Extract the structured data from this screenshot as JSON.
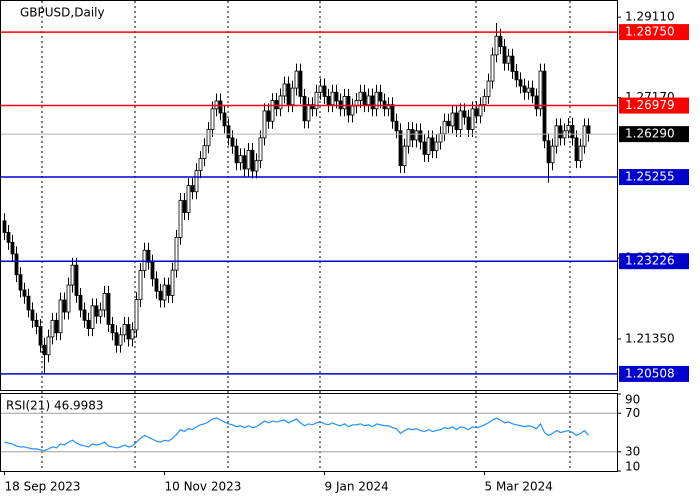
{
  "chart_data": {
    "type": "candlestick",
    "title": "GBPUSD,Daily",
    "categories": [
      "18 Sep 2023",
      null,
      null,
      null,
      null,
      null,
      null,
      null,
      null,
      null,
      null,
      null,
      null,
      null,
      null,
      null,
      null,
      null,
      null,
      null,
      null,
      null,
      null,
      null,
      null,
      null,
      null,
      null,
      null,
      null,
      null,
      null,
      null,
      null,
      null,
      null,
      null,
      null,
      null,
      null,
      "10 Nov 2023",
      null,
      null,
      null,
      null,
      null,
      null,
      null,
      null,
      null,
      null,
      null,
      null,
      null,
      null,
      null,
      null,
      null,
      null,
      null,
      null,
      null,
      null,
      null,
      null,
      null,
      null,
      null,
      null,
      null,
      null,
      null,
      null,
      null,
      null,
      null,
      null,
      null,
      null,
      null,
      "9 Jan 2024",
      null,
      null,
      null,
      null,
      null,
      null,
      null,
      null,
      null,
      null,
      null,
      null,
      null,
      null,
      null,
      null,
      null,
      null,
      null,
      null,
      null,
      null,
      null,
      null,
      null,
      null,
      null,
      null,
      null,
      null,
      null,
      null,
      null,
      null,
      null,
      null,
      null,
      null,
      null,
      "5 Mar 2024",
      null,
      null,
      null,
      null,
      null,
      null,
      null,
      null,
      null,
      null,
      null,
      null,
      null,
      null,
      null,
      null,
      null,
      null,
      null,
      null,
      null,
      null,
      null,
      null,
      null,
      null
    ],
    "open": [
      1.242,
      1.2392,
      1.2368,
      1.234,
      1.229,
      1.2253,
      1.2238,
      1.2205,
      1.218,
      1.2165,
      1.212,
      1.2097,
      1.214,
      1.218,
      1.215,
      1.2229,
      1.22,
      1.2265,
      1.2313,
      1.224,
      1.2205,
      1.218,
      1.216,
      1.2215,
      1.219,
      1.2205,
      1.2245,
      1.217,
      1.215,
      1.212,
      1.2145,
      1.217,
      1.2135,
      1.2157,
      1.223,
      1.23,
      1.2349,
      1.232,
      1.228,
      1.225,
      1.2229,
      1.2265,
      1.224,
      1.2301,
      1.238,
      1.2469,
      1.244,
      1.2505,
      1.249,
      1.2541,
      1.257,
      1.2601,
      1.264,
      1.269,
      1.2709,
      1.268,
      1.2649,
      1.262,
      1.26,
      1.256,
      1.2577,
      1.2545,
      1.259,
      1.254,
      1.2565,
      1.262,
      1.2685,
      1.266,
      1.271,
      1.269,
      1.2721,
      1.275,
      1.27,
      1.274,
      1.2781,
      1.272,
      1.2661,
      1.27,
      1.269,
      1.273,
      1.2745,
      1.272,
      1.27,
      1.273,
      1.2709,
      1.269,
      1.272,
      1.2675,
      1.2697,
      1.271,
      1.273,
      1.27,
      1.2721,
      1.269,
      1.273,
      1.2709,
      1.269,
      1.27,
      1.266,
      1.2637,
      1.2553,
      1.26,
      1.264,
      1.2615,
      1.2637,
      1.261,
      1.258,
      1.262,
      1.2589,
      1.261,
      1.263,
      1.266,
      1.2649,
      1.268,
      1.264,
      1.2685,
      1.267,
      1.264,
      1.269,
      1.2673,
      1.27,
      1.272,
      1.2757,
      1.282,
      1.2865,
      1.284,
      1.28,
      1.2817,
      1.278,
      1.276,
      1.2745,
      1.273,
      1.274,
      1.2721,
      1.269,
      1.2781,
      1.2613,
      1.256,
      1.26,
      1.2649,
      1.262,
      1.2637,
      1.265,
      1.262,
      1.2565,
      1.26,
      1.2649
    ],
    "high": [
      1.2438,
      1.241,
      1.2386,
      1.2358,
      1.2308,
      1.2271,
      1.2256,
      1.2223,
      1.2198,
      1.2183,
      1.2138,
      1.2158,
      1.2198,
      1.2198,
      1.2247,
      1.2247,
      1.2283,
      1.2331,
      1.2331,
      1.2258,
      1.2223,
      1.2198,
      1.2233,
      1.2233,
      1.2223,
      1.2263,
      1.2263,
      1.2188,
      1.2168,
      1.2163,
      1.2188,
      1.2188,
      1.2175,
      1.2248,
      1.2318,
      1.2367,
      1.2367,
      1.2338,
      1.2298,
      1.2268,
      1.2283,
      1.2283,
      1.2319,
      1.2398,
      1.2487,
      1.2487,
      1.2523,
      1.2523,
      1.2559,
      1.2588,
      1.2619,
      1.2658,
      1.2708,
      1.2727,
      1.2727,
      1.2698,
      1.2667,
      1.2638,
      1.2618,
      1.2595,
      1.2595,
      1.2608,
      1.2608,
      1.2583,
      1.2638,
      1.2703,
      1.2703,
      1.2728,
      1.2728,
      1.2739,
      1.2768,
      1.2768,
      1.2758,
      1.2799,
      1.2799,
      1.2738,
      1.2718,
      1.2718,
      1.2748,
      1.2763,
      1.2763,
      1.2738,
      1.2748,
      1.2748,
      1.2727,
      1.2738,
      1.2738,
      1.2715,
      1.2728,
      1.2748,
      1.2748,
      1.2739,
      1.2739,
      1.2748,
      1.2748,
      1.2727,
      1.2718,
      1.2718,
      1.2678,
      1.2655,
      1.2618,
      1.2658,
      1.2658,
      1.2655,
      1.2655,
      1.2628,
      1.2638,
      1.2638,
      1.2628,
      1.2648,
      1.2678,
      1.2678,
      1.2698,
      1.2698,
      1.2703,
      1.2703,
      1.2688,
      1.2708,
      1.2708,
      1.2718,
      1.2738,
      1.2775,
      1.2838,
      1.2897,
      1.2883,
      1.2858,
      1.2835,
      1.2835,
      1.2798,
      1.2778,
      1.2763,
      1.2758,
      1.2758,
      1.2739,
      1.2799,
      1.2799,
      1.2631,
      1.2618,
      1.2667,
      1.2667,
      1.2655,
      1.2668,
      1.2668,
      1.2638,
      1.2618,
      1.2667,
      1.2667
    ],
    "low": [
      1.2374,
      1.235,
      1.2322,
      1.2272,
      1.2235,
      1.222,
      1.2187,
      1.2162,
      1.2147,
      1.2102,
      1.2049,
      1.2079,
      1.2122,
      1.2132,
      1.2132,
      1.2182,
      1.2182,
      1.2247,
      1.2222,
      1.2187,
      1.2162,
      1.2142,
      1.2142,
      1.2172,
      1.2172,
      1.2187,
      1.2152,
      1.2132,
      1.2102,
      1.2102,
      1.2127,
      1.2117,
      1.2117,
      1.2139,
      1.2212,
      1.2282,
      1.2302,
      1.2262,
      1.2232,
      1.2211,
      1.2211,
      1.2222,
      1.2222,
      1.2283,
      1.2362,
      1.2422,
      1.2422,
      1.2472,
      1.2472,
      1.2523,
      1.2552,
      1.2583,
      1.2622,
      1.2672,
      1.2662,
      1.2631,
      1.2602,
      1.2582,
      1.2542,
      1.2542,
      1.2527,
      1.2527,
      1.2522,
      1.2522,
      1.2547,
      1.2602,
      1.2642,
      1.2642,
      1.2672,
      1.2672,
      1.2703,
      1.2682,
      1.2682,
      1.2722,
      1.2702,
      1.2643,
      1.2643,
      1.2672,
      1.2672,
      1.2712,
      1.2702,
      1.2682,
      1.2682,
      1.2691,
      1.2672,
      1.2672,
      1.2657,
      1.2657,
      1.2679,
      1.2692,
      1.2682,
      1.2682,
      1.2672,
      1.2672,
      1.2691,
      1.2672,
      1.2672,
      1.2642,
      1.2619,
      1.2535,
      1.2535,
      1.2582,
      1.2597,
      1.2597,
      1.2592,
      1.2562,
      1.2562,
      1.2571,
      1.2571,
      1.2592,
      1.2612,
      1.2631,
      1.2631,
      1.2622,
      1.2622,
      1.2652,
      1.2622,
      1.2622,
      1.2655,
      1.2655,
      1.2682,
      1.2702,
      1.2739,
      1.2802,
      1.2822,
      1.2782,
      1.2782,
      1.2762,
      1.2742,
      1.2727,
      1.2712,
      1.2712,
      1.2703,
      1.2672,
      1.2672,
      1.2595,
      1.2512,
      1.2542,
      1.2582,
      1.2602,
      1.2602,
      1.2619,
      1.2602,
      1.2547,
      1.2547,
      1.2582,
      1.2611
    ],
    "close": [
      1.2392,
      1.2368,
      1.234,
      1.229,
      1.2253,
      1.2238,
      1.2205,
      1.218,
      1.2165,
      1.212,
      1.2097,
      1.214,
      1.218,
      1.215,
      1.2229,
      1.22,
      1.2265,
      1.2313,
      1.224,
      1.2205,
      1.218,
      1.216,
      1.2215,
      1.219,
      1.2205,
      1.2245,
      1.217,
      1.215,
      1.212,
      1.2145,
      1.217,
      1.2135,
      1.2157,
      1.223,
      1.23,
      1.2349,
      1.232,
      1.228,
      1.225,
      1.2229,
      1.2265,
      1.224,
      1.2301,
      1.238,
      1.2469,
      1.244,
      1.2505,
      1.249,
      1.2541,
      1.257,
      1.2601,
      1.264,
      1.269,
      1.2709,
      1.268,
      1.2649,
      1.262,
      1.26,
      1.256,
      1.2577,
      1.2545,
      1.259,
      1.254,
      1.2565,
      1.262,
      1.2685,
      1.266,
      1.271,
      1.269,
      1.2721,
      1.275,
      1.27,
      1.274,
      1.2781,
      1.272,
      1.2661,
      1.27,
      1.269,
      1.273,
      1.2745,
      1.272,
      1.27,
      1.273,
      1.2709,
      1.269,
      1.272,
      1.2675,
      1.2697,
      1.271,
      1.273,
      1.27,
      1.2721,
      1.269,
      1.273,
      1.2709,
      1.269,
      1.27,
      1.266,
      1.2637,
      1.2553,
      1.26,
      1.264,
      1.2615,
      1.2637,
      1.261,
      1.258,
      1.262,
      1.2589,
      1.261,
      1.263,
      1.266,
      1.2649,
      1.268,
      1.264,
      1.2685,
      1.267,
      1.264,
      1.269,
      1.2673,
      1.27,
      1.272,
      1.2757,
      1.282,
      1.2865,
      1.284,
      1.28,
      1.2817,
      1.278,
      1.276,
      1.2745,
      1.273,
      1.274,
      1.2721,
      1.269,
      1.2781,
      1.2613,
      1.256,
      1.26,
      1.2649,
      1.262,
      1.2637,
      1.265,
      1.262,
      1.2565,
      1.26,
      1.2649,
      1.2629
    ],
    "up_color": "#ffffff",
    "down_color": "#000000",
    "ylim": [
      1.2012,
      1.295
    ],
    "yticks": [
      {
        "value": 1.2911,
        "label": "1.29110"
      },
      {
        "value": 1.2717,
        "label": "1.27170"
      },
      {
        "value": 1.233,
        "label": "1.23300"
      },
      {
        "value": 1.2135,
        "label": "1.21350"
      }
    ],
    "levels": [
      {
        "value": 1.2875,
        "label": "1.28750",
        "color": "#ff0000"
      },
      {
        "value": 1.26979,
        "label": "1.26979",
        "color": "#ff0000"
      },
      {
        "value": 1.25255,
        "label": "1.25255",
        "color": "#0000cd"
      },
      {
        "value": 1.23226,
        "label": "1.23226",
        "color": "#0000cd"
      },
      {
        "value": 1.20508,
        "label": "1.20508",
        "color": "#0000cd"
      }
    ],
    "last_price": {
      "value": 1.2629,
      "label": "1.26290",
      "color": "#000000"
    },
    "indicator": {
      "type": "line",
      "title": "RSI(21) 46.9983",
      "color": "#1e90ff",
      "values": [
        40,
        39,
        38,
        36,
        35,
        35,
        34,
        33,
        33,
        32,
        31,
        33,
        35,
        34,
        38,
        37,
        40,
        42,
        39,
        37,
        36,
        35,
        38,
        37,
        38,
        40,
        36,
        35,
        34,
        35,
        37,
        35,
        36,
        40,
        44,
        47,
        45,
        43,
        41,
        40,
        42,
        41,
        44,
        48,
        53,
        51,
        54,
        53,
        56,
        58,
        59,
        61,
        64,
        65,
        63,
        61,
        59,
        58,
        56,
        57,
        55,
        57,
        55,
        56,
        59,
        62,
        60,
        62,
        61,
        62,
        63,
        60,
        62,
        64,
        60,
        57,
        59,
        58,
        60,
        61,
        59,
        58,
        60,
        58,
        57,
        59,
        56,
        58,
        58,
        59,
        57,
        58,
        56,
        59,
        58,
        57,
        57,
        55,
        54,
        49,
        52,
        54,
        53,
        54,
        52,
        51,
        53,
        51,
        52,
        53,
        55,
        54,
        56,
        53,
        56,
        55,
        53,
        56,
        55,
        56,
        58,
        60,
        63,
        65,
        63,
        60,
        61,
        59,
        58,
        57,
        56,
        57,
        56,
        54,
        59,
        50,
        47,
        49,
        52,
        50,
        51,
        52,
        50,
        47,
        49,
        52,
        46.9983
      ],
      "ylim": [
        10,
        90
      ],
      "yticks": [
        90,
        70,
        30,
        10
      ],
      "levels": [
        70,
        30
      ]
    }
  }
}
